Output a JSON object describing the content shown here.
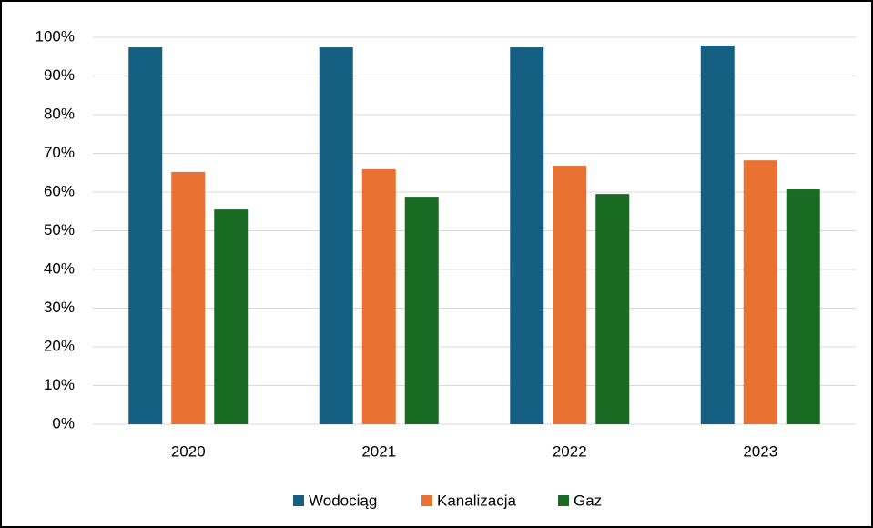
{
  "chart_data": {
    "type": "bar",
    "categories": [
      "2020",
      "2021",
      "2022",
      "2023"
    ],
    "series": [
      {
        "name": "Wodociąg",
        "color": "#156082",
        "values": [
          97.4,
          97.4,
          97.4,
          97.9
        ]
      },
      {
        "name": "Kanalizacja",
        "color": "#e97132",
        "values": [
          65.2,
          65.9,
          66.8,
          68.2
        ]
      },
      {
        "name": "Gaz",
        "color": "#196b24",
        "values": [
          55.5,
          58.8,
          59.5,
          60.7
        ]
      }
    ],
    "ylim": [
      0,
      100
    ],
    "yticks": [
      {
        "value": 0,
        "label": "0%"
      },
      {
        "value": 10,
        "label": "10%"
      },
      {
        "value": 20,
        "label": "20%"
      },
      {
        "value": 30,
        "label": "30%"
      },
      {
        "value": 40,
        "label": "40%"
      },
      {
        "value": 50,
        "label": "50%"
      },
      {
        "value": 60,
        "label": "60%"
      },
      {
        "value": 70,
        "label": "70%"
      },
      {
        "value": 80,
        "label": "80%"
      },
      {
        "value": 90,
        "label": "90%"
      },
      {
        "value": 100,
        "label": "100%"
      }
    ],
    "grid": true,
    "legend": "bottom"
  }
}
